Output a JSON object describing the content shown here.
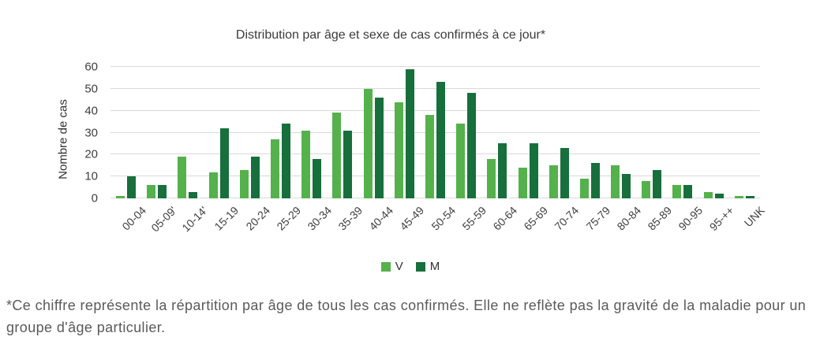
{
  "title": "Distribution par âge et sexe de cas confirmés à ce jour*",
  "footnote": "*Ce chiffre représente la répartition par âge de tous les cas confirmés. Elle ne reflète pas la gravité de la maladie pour un groupe d'âge particulier.",
  "chart_data": {
    "type": "bar",
    "title": "Distribution par âge et sexe de cas confirmés à ce jour*",
    "xlabel": "",
    "ylabel": "Nombre de cas",
    "ylim": [
      0,
      60
    ],
    "ytick_step": 10,
    "grid": true,
    "grid_color": "#d9d9d9",
    "legend_position": "bottom",
    "categories": [
      "00-04",
      "05-09'",
      "10-14'",
      "15-19",
      "20-24",
      "25-29",
      "30-34",
      "35-39",
      "40-44",
      "45-49",
      "50-54",
      "55-59",
      "60-64",
      "65-69",
      "70-74",
      "75-79",
      "80-84",
      "85-89",
      "90-95",
      "95-++",
      "UNK"
    ],
    "series": [
      {
        "name": "V",
        "color": "#55b14c",
        "values": [
          1,
          6,
          19,
          12,
          13,
          27,
          31,
          39,
          50,
          44,
          38,
          34,
          18,
          14,
          15,
          9,
          15,
          8,
          6,
          3,
          1
        ]
      },
      {
        "name": "M",
        "color": "#176f3c",
        "values": [
          10,
          6,
          3,
          32,
          19,
          34,
          18,
          31,
          46,
          59,
          53,
          48,
          25,
          25,
          23,
          16,
          11,
          13,
          6,
          2,
          1
        ]
      }
    ]
  }
}
